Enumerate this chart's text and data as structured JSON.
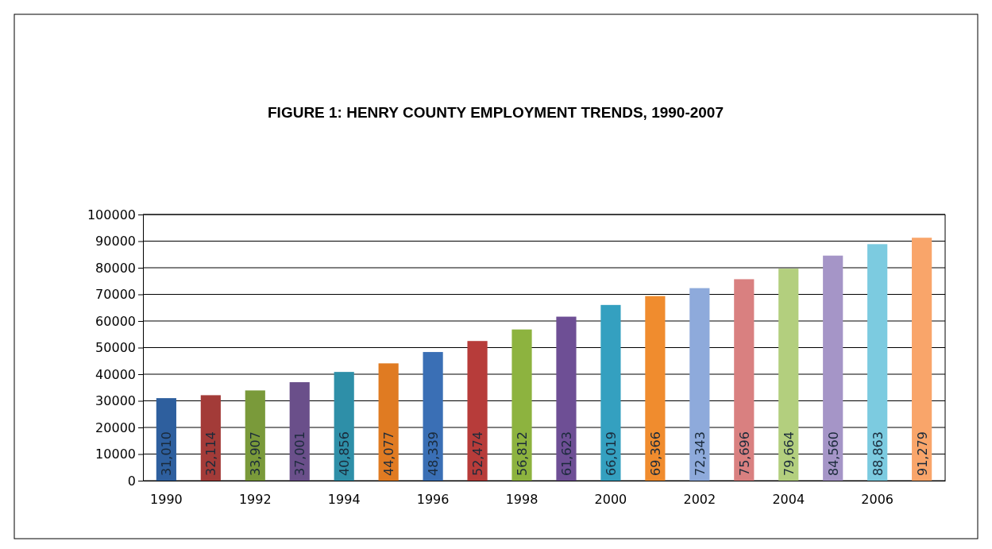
{
  "chart_data": {
    "type": "bar",
    "title": "FIGURE 1:  HENRY COUNTY EMPLOYMENT TRENDS, 1990-2007",
    "categories": [
      "1990",
      null,
      "1992",
      null,
      "1994",
      null,
      "1996",
      null,
      "1998",
      null,
      "2000",
      null,
      "2002",
      null,
      "2004",
      null,
      "2006",
      null
    ],
    "values": [
      31010,
      32114,
      33907,
      37001,
      40856,
      44077,
      48339,
      52474,
      56812,
      61623,
      66019,
      69366,
      72343,
      75696,
      79664,
      84560,
      88863,
      91279
    ],
    "value_labels": [
      "31,010",
      "32,114",
      "33,907",
      "37,001",
      "40,856",
      "44,077",
      "48,339",
      "52,474",
      "56,812",
      "61,623",
      "66,019",
      "69,366",
      "72,343",
      "75,696",
      "79,664",
      "84,560",
      "88,863",
      "91,279"
    ],
    "colors": [
      "#2e5f9e",
      "#a33b38",
      "#7a9a3a",
      "#6a4f8a",
      "#2e8fa8",
      "#e07b22",
      "#3a6fb5",
      "#b73c3a",
      "#8db33f",
      "#6e4f95",
      "#34a0c0",
      "#f08c2e",
      "#8eaadb",
      "#d98080",
      "#b3cf7e",
      "#a595c7",
      "#7ccbe0",
      "#f9a56a"
    ],
    "ylim": [
      0,
      100000
    ],
    "yticks": [
      0,
      10000,
      20000,
      30000,
      40000,
      50000,
      60000,
      70000,
      80000,
      90000,
      100000
    ],
    "grid": "y"
  }
}
